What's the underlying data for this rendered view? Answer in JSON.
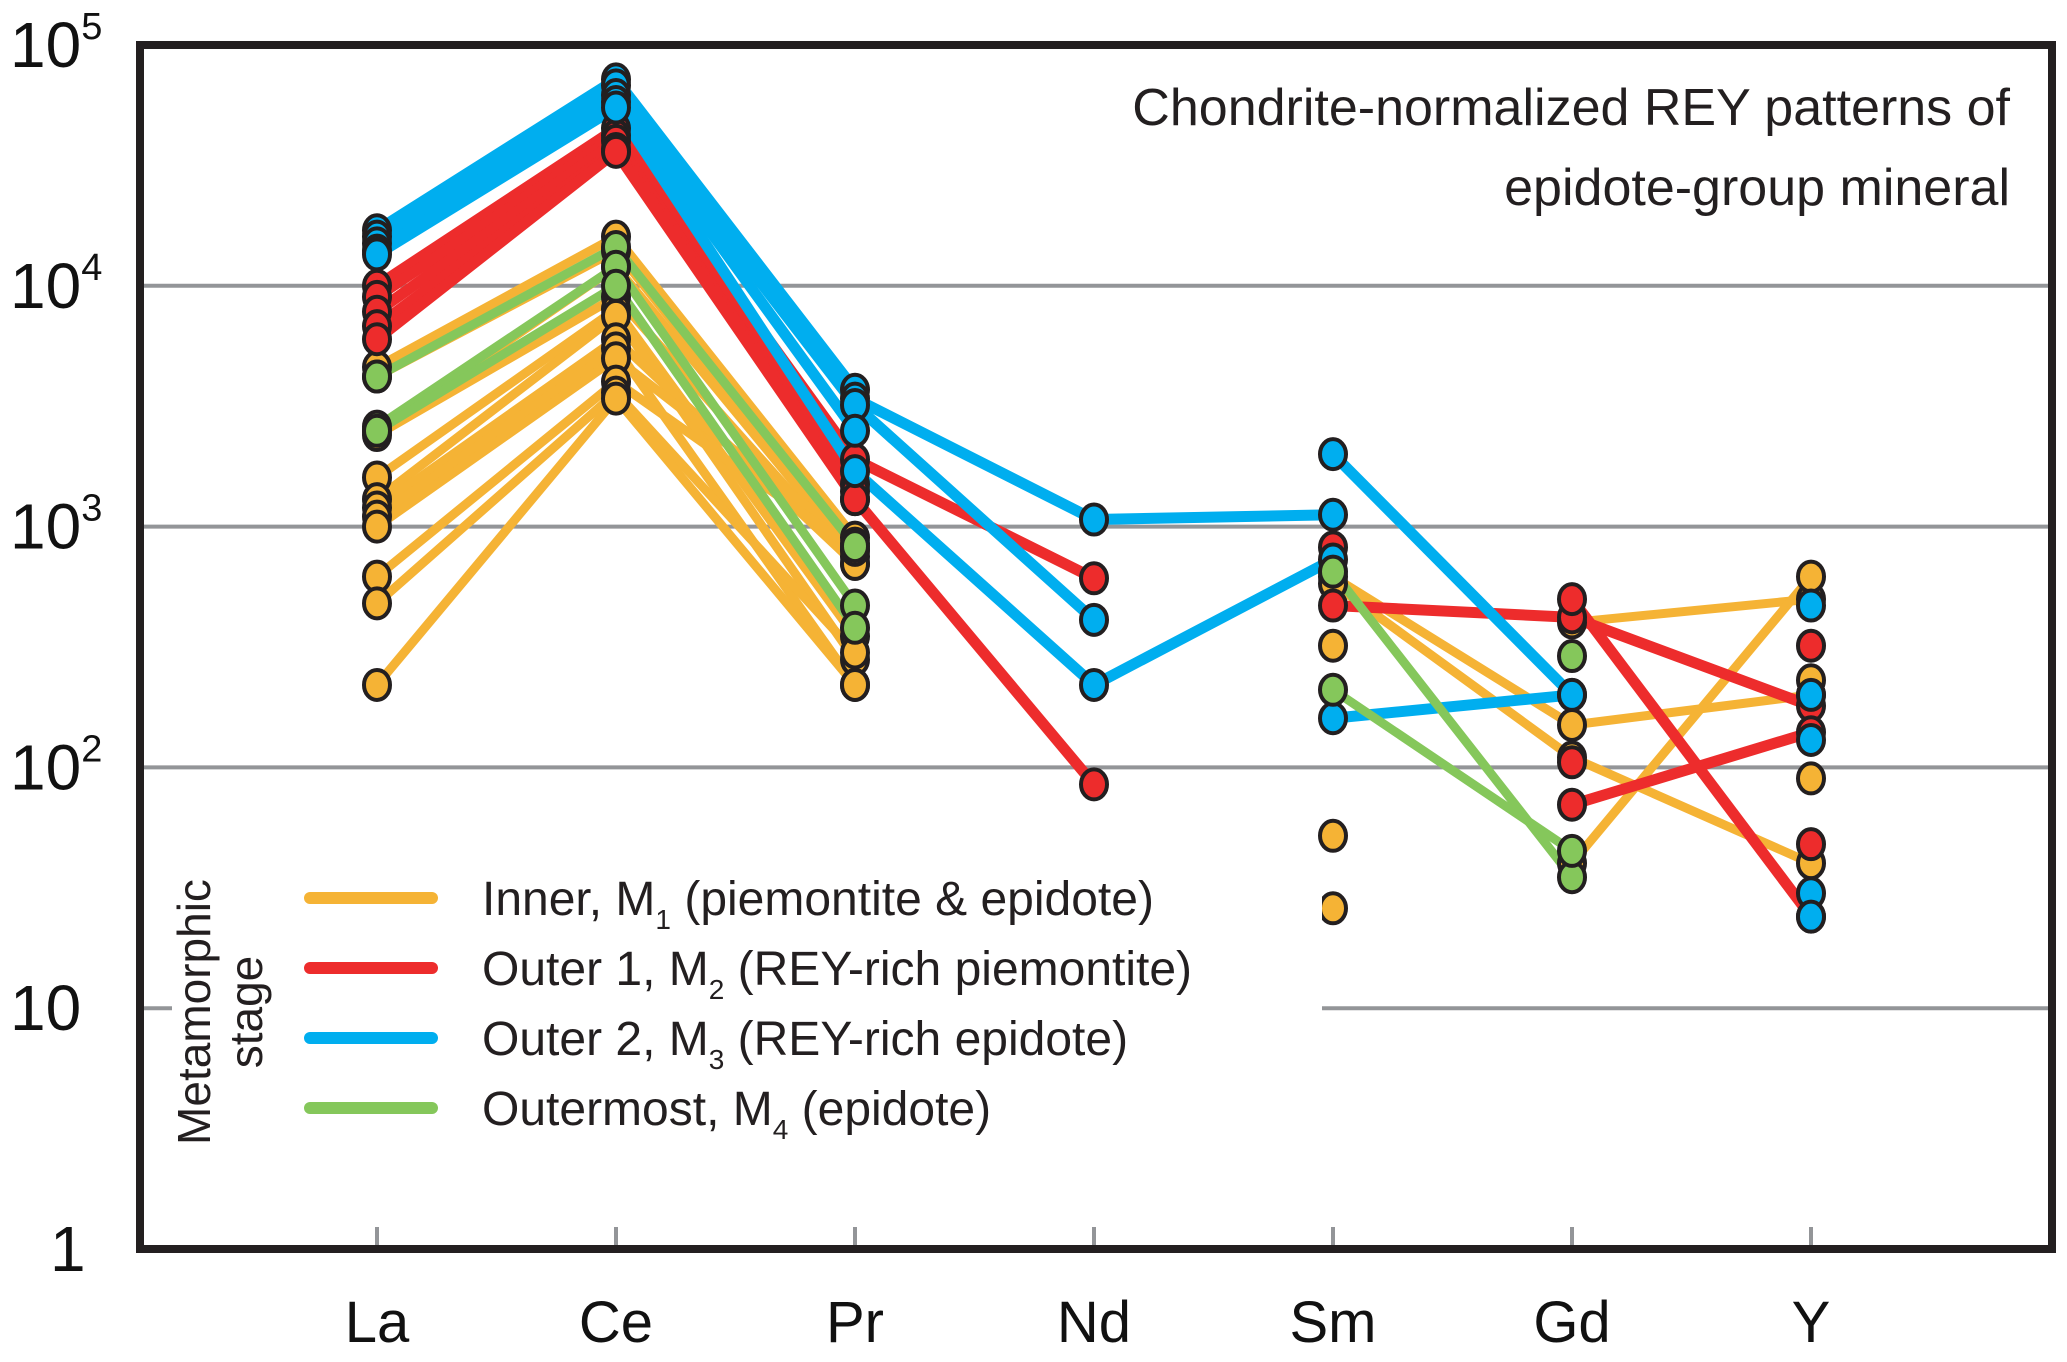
{
  "chart_data": {
    "type": "line",
    "title": "Chondrite-normalized REY patterns of epidote-group mineral",
    "title_lines": [
      "Chondrite-normalized REY patterns of",
      "epidote-group mineral"
    ],
    "xlabel": "",
    "ylabel": "",
    "y_scale": "log",
    "ylim": [
      1,
      100000
    ],
    "y_ticks": [
      {
        "value": 1,
        "base": "1",
        "exp": ""
      },
      {
        "value": 10,
        "base": "10",
        "exp": ""
      },
      {
        "value": 100,
        "base": "10",
        "exp": "2"
      },
      {
        "value": 1000,
        "base": "10",
        "exp": "3"
      },
      {
        "value": 10000,
        "base": "10",
        "exp": "4"
      },
      {
        "value": 100000,
        "base": "10",
        "exp": "5"
      }
    ],
    "categories": [
      "La",
      "Ce",
      "Pr",
      "Nd",
      "Sm",
      "Gd",
      "Y"
    ],
    "grid": true,
    "legend_position": "bottom-left",
    "legend_title": [
      "Metamorphic",
      "stage"
    ],
    "series_groups": [
      {
        "name": "Inner, M1 (piemontite & epidote)",
        "label_main": "Inner, M",
        "label_sub": "1",
        "label_rest": " (piemontite & epidote)",
        "color": "#f5b335",
        "samples": [
          [
            4600,
            16000,
            900,
            null,
            null,
            null,
            null
          ],
          [
            4200,
            14000,
            800,
            null,
            null,
            null,
            null
          ],
          [
            2500,
            12000,
            750,
            null,
            null,
            null,
            null
          ],
          [
            2400,
            9000,
            700,
            null,
            null,
            null,
            null
          ],
          [
            1600,
            8000,
            350,
            null,
            null,
            null,
            null
          ],
          [
            1300,
            7500,
            280,
            null,
            null,
            null,
            null
          ],
          [
            1200,
            6000,
            700,
            null,
            null,
            null,
            null
          ],
          [
            1100,
            5500,
            220,
            null,
            null,
            null,
            null
          ],
          [
            1000,
            5000,
            850,
            null,
            null,
            null,
            null
          ],
          [
            620,
            4000,
            800,
            null,
            null,
            null,
            null
          ],
          [
            480,
            3600,
            300,
            null,
            null,
            null,
            null
          ],
          [
            220,
            3400,
            220,
            null,
            null,
            null,
            null
          ],
          [
            null,
            null,
            null,
            null,
            620,
            150,
            200
          ],
          [
            null,
            null,
            null,
            null,
            580,
            110,
            40
          ],
          [
            null,
            null,
            null,
            null,
            320,
            null,
            null
          ],
          [
            null,
            null,
            null,
            null,
            52,
            null,
            null
          ],
          [
            null,
            null,
            null,
            null,
            26,
            null,
            null
          ],
          [
            null,
            null,
            null,
            null,
            null,
            400,
            500
          ],
          [
            null,
            null,
            null,
            null,
            null,
            40,
            620
          ],
          [
            null,
            null,
            null,
            null,
            null,
            null,
            230
          ],
          [
            null,
            null,
            null,
            null,
            null,
            null,
            90
          ]
        ]
      },
      {
        "name": "Outer 1, M2 (REY-rich piemontite)",
        "label_main": "Outer 1, M",
        "label_sub": "2",
        "label_rest": " (REY-rich piemontite)",
        "color": "#ed2c2c",
        "samples": [
          [
            10000,
            45000,
            1900,
            610,
            null,
            null,
            null
          ],
          [
            9000,
            42000,
            1500,
            null,
            null,
            null,
            null
          ],
          [
            7800,
            40000,
            1300,
            85,
            null,
            null,
            null
          ],
          [
            6800,
            37000,
            1400,
            null,
            null,
            null,
            null
          ],
          [
            6000,
            36000,
            1300,
            null,
            null,
            null,
            null
          ],
          [
            null,
            null,
            null,
            null,
            820,
            null,
            null
          ],
          [
            null,
            null,
            null,
            null,
            470,
            420,
            180
          ],
          [
            null,
            null,
            null,
            null,
            null,
            500,
            24
          ],
          [
            null,
            null,
            null,
            null,
            null,
            105,
            null
          ],
          [
            null,
            null,
            null,
            null,
            null,
            70,
            140
          ],
          [
            null,
            null,
            null,
            null,
            null,
            null,
            320
          ],
          [
            null,
            null,
            null,
            null,
            null,
            null,
            48
          ]
        ]
      },
      {
        "name": "Outer 2, M3 (REY-rich epidote)",
        "label_main": "Outer 2, M",
        "label_sub": "3",
        "label_rest": " (REY-rich epidote)",
        "color": "#00aeef",
        "samples": [
          [
            17000,
            72000,
            3700,
            null,
            null,
            null,
            null
          ],
          [
            16000,
            68000,
            3400,
            1070,
            1120,
            null,
            null
          ],
          [
            15000,
            62000,
            3200,
            410,
            null,
            null,
            null
          ],
          [
            14000,
            58000,
            2500,
            null,
            null,
            null,
            null
          ],
          [
            13500,
            55000,
            1700,
            220,
            730,
            null,
            null
          ],
          [
            null,
            null,
            null,
            null,
            2000,
            200,
            null
          ],
          [
            null,
            null,
            null,
            null,
            160,
            200,
            null
          ],
          [
            null,
            null,
            null,
            null,
            null,
            null,
            470
          ],
          [
            null,
            null,
            null,
            null,
            null,
            null,
            200
          ],
          [
            null,
            null,
            null,
            null,
            null,
            null,
            130
          ],
          [
            null,
            null,
            null,
            null,
            null,
            null,
            30
          ],
          [
            null,
            null,
            null,
            null,
            null,
            null,
            24
          ]
        ]
      },
      {
        "name": "Outermost, M4 (epidote)",
        "label_main": "Outermost, M",
        "label_sub": "4",
        "label_rest": " (epidote)",
        "color": "#85c75b",
        "samples": [
          [
            4200,
            14500,
            830,
            null,
            null,
            null,
            null
          ],
          [
            2600,
            12000,
            470,
            null,
            null,
            null,
            null
          ],
          [
            2500,
            10000,
            380,
            null,
            null,
            null,
            null
          ],
          [
            null,
            null,
            null,
            null,
            650,
            35,
            null
          ],
          [
            null,
            null,
            null,
            null,
            210,
            45,
            null
          ],
          [
            null,
            null,
            null,
            null,
            null,
            290,
            null
          ]
        ]
      }
    ]
  }
}
